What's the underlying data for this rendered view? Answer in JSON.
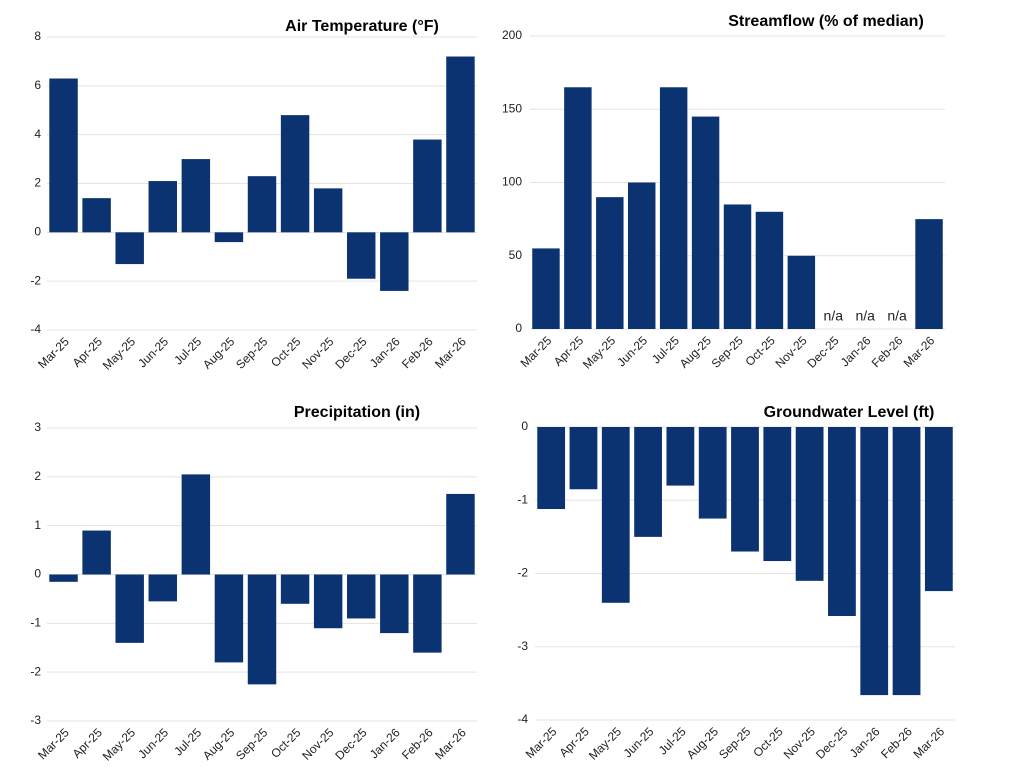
{
  "chart_data": [
    {
      "type": "bar",
      "title": "Air Temperature  (°F)",
      "categories": [
        "Mar-25",
        "Apr-25",
        "May-25",
        "Jun-25",
        "Jul-25",
        "Aug-25",
        "Sep-25",
        "Oct-25",
        "Nov-25",
        "Dec-25",
        "Jan-26",
        "Feb-26",
        "Mar-26"
      ],
      "values": [
        6.3,
        1.4,
        -1.3,
        2.1,
        3.0,
        -0.4,
        2.3,
        4.8,
        1.8,
        -1.9,
        -2.4,
        3.8,
        7.2
      ],
      "color": "#0b3271",
      "ylim": [
        -4,
        8
      ],
      "yticks": [
        -4,
        -2,
        0,
        2,
        4,
        6,
        8
      ],
      "grid": true
    },
    {
      "type": "bar",
      "title": "Streamflow (% of median)",
      "categories": [
        "Mar-25",
        "Apr-25",
        "May-25",
        "Jun-25",
        "Jul-25",
        "Aug-25",
        "Sep-25",
        "Oct-25",
        "Nov-25",
        "Dec-25",
        "Jan-26",
        "Feb-26",
        "Mar-26"
      ],
      "values": [
        55,
        165,
        90,
        100,
        165,
        145,
        85,
        80,
        50,
        null,
        null,
        null,
        75
      ],
      "value_labels": [
        null,
        null,
        null,
        null,
        null,
        null,
        null,
        null,
        null,
        "n/a",
        "n/a",
        "n/a",
        null
      ],
      "color": "#0b3271",
      "ylim": [
        0,
        200
      ],
      "yticks": [
        0,
        50,
        100,
        150,
        200
      ],
      "grid": true
    },
    {
      "type": "bar",
      "title": "Precipitation (in)",
      "categories": [
        "Mar-25",
        "Apr-25",
        "May-25",
        "Jun-25",
        "Jul-25",
        "Aug-25",
        "Sep-25",
        "Oct-25",
        "Nov-25",
        "Dec-25",
        "Jan-26",
        "Feb-26",
        "Mar-26"
      ],
      "values": [
        -0.15,
        0.9,
        -1.4,
        -0.55,
        2.05,
        -1.8,
        -2.25,
        -0.6,
        -1.1,
        -0.9,
        -1.2,
        -1.6,
        1.65
      ],
      "color": "#0b3271",
      "ylim": [
        -3,
        3
      ],
      "yticks": [
        -3,
        -2,
        -1,
        0,
        1,
        2,
        3
      ],
      "grid": true
    },
    {
      "type": "bar",
      "title": "Groundwater Level (ft)",
      "categories": [
        "Mar-25",
        "Apr-25",
        "May-25",
        "Jun-25",
        "Jul-25",
        "Aug-25",
        "Sep-25",
        "Oct-25",
        "Nov-25",
        "Dec-25",
        "Jan-26",
        "Feb-26",
        "Mar-26"
      ],
      "values": [
        -1.12,
        -0.85,
        -2.4,
        -1.5,
        -0.8,
        -1.25,
        -1.7,
        -1.83,
        -2.1,
        -2.58,
        -3.66,
        -3.66,
        -2.24
      ],
      "color": "#0b3271",
      "ylim": [
        -4,
        0
      ],
      "yticks": [
        -4,
        -3,
        -2,
        -1,
        0
      ],
      "grid": true
    }
  ]
}
